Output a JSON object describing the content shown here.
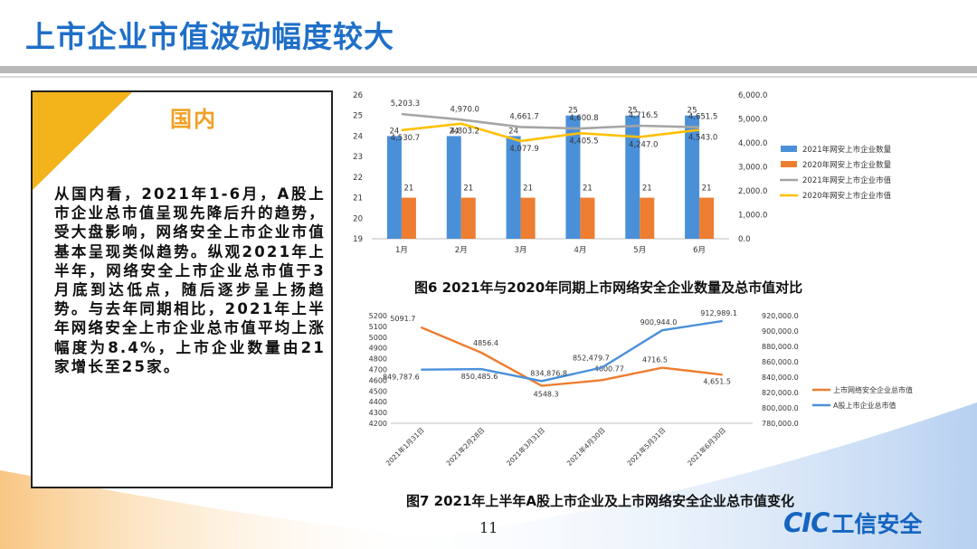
{
  "slide": {
    "title": "上市企业市值波动幅度较大",
    "page_number": "11"
  },
  "panel": {
    "heading": "国内",
    "body": "从国内看，2021年1-6月，A股上市企业总市值呈现先降后升的趋势，受大盘影响，网络安全上市企业市值基本呈现类似趋势。纵观2021年上半年，网络安全上市企业总市值于3月底到达低点，随后逐步呈上扬趋势。与去年同期相比，2021年上半年网络安全上市企业总市值平均上涨幅度为8.4%，上市企业数量由21家增长至25家。"
  },
  "captions": {
    "fig6": "图6  2021年与2020年同期上市网络安全企业数量及总市值对比",
    "fig7": "图7  2021年上半年A股上市企业及上市网络安全企业总市值变化"
  },
  "logo": {
    "mark": "CIC",
    "text": "工信安全"
  },
  "colors": {
    "title": "#1f6fc8",
    "orange": "#ed7d31",
    "blue": "#4a90d9",
    "gray": "#a5a5a5",
    "yellow": "#ffc000",
    "accent": "#f2b31b"
  },
  "chart_data": [
    {
      "type": "bar+line",
      "title": "图6  2021年与2020年同期上市网络安全企业数量及总市值对比",
      "categories": [
        "1月",
        "2月",
        "3月",
        "4月",
        "5月",
        "6月"
      ],
      "left_axis": {
        "ylim": [
          19,
          26
        ],
        "ticks": [
          "19",
          "20",
          "21",
          "22",
          "23",
          "24",
          "25",
          "26"
        ]
      },
      "right_axis": {
        "ylim": [
          0,
          6000
        ],
        "ticks": [
          "0.0",
          "1,000.0",
          "2,000.0",
          "3,000.0",
          "4,000.0",
          "5,000.0",
          "6,000.0"
        ]
      },
      "bar_series": [
        {
          "name": "2021年网安上市企业数量",
          "values": [
            24,
            24,
            24,
            25,
            25,
            25
          ],
          "labels": [
            "24",
            "24",
            "24",
            "25",
            "25",
            "25"
          ]
        },
        {
          "name": "2020年网安上市企业数量",
          "values": [
            21,
            21,
            21,
            21,
            21,
            21
          ],
          "labels": [
            "21",
            "21",
            "21",
            "21",
            "21",
            "21"
          ]
        }
      ],
      "line_series": [
        {
          "name": "2021年网安上市企业市值",
          "values": [
            5203.3,
            4970.0,
            4661.7,
            4600.8,
            4716.5,
            4651.5
          ],
          "labels": [
            "5,203.3",
            "4,970.0",
            "4,661.7",
            "4,600.8",
            "4,716.5",
            "4,651.5"
          ]
        },
        {
          "name": "2020年网安上市企业市值",
          "values": [
            4530.7,
            4803.2,
            4077.9,
            4405.5,
            4247.0,
            4543.0
          ],
          "labels": [
            "4,530.7",
            "4,803.2",
            "4,077.9",
            "4,405.5",
            "4,247.0",
            "4,543.0"
          ]
        }
      ],
      "legend": [
        "2021年网安上市企业数量",
        "2020年网安上市企业数量",
        "2021年网安上市企业市值",
        "2020年网安上市企业市值"
      ]
    },
    {
      "type": "line",
      "title": "图7  2021年上半年A股上市企业及上市网络安全企业总市值变化",
      "categories": [
        "2021年1月31日",
        "2021年2月28日",
        "2021年3月31日",
        "2021年4月30日",
        "2021年5月31日",
        "2021年6月30日"
      ],
      "left_axis": {
        "ylim": [
          4200,
          5200
        ],
        "ticks": [
          "4200",
          "4300",
          "4400",
          "4500",
          "4600",
          "4700",
          "4800",
          "4900",
          "5000",
          "5100",
          "5200"
        ]
      },
      "right_axis": {
        "ylim": [
          780000,
          920000
        ],
        "ticks": [
          "780,000.0",
          "800,000.0",
          "820,000.0",
          "840,000.0",
          "860,000.0",
          "880,000.0",
          "900,000.0",
          "920,000.0"
        ]
      },
      "series": [
        {
          "name": "上市网络安全企业总市值",
          "axis": "left",
          "values": [
            5091.7,
            4856.4,
            4548.3,
            4600.77,
            4716.5,
            4651.5
          ],
          "labels": [
            "5091.7",
            "4856.4",
            "4548.3",
            "4600.77",
            "4716.5",
            "4,651.5"
          ]
        },
        {
          "name": "A股上市企业总市值",
          "axis": "right",
          "values": [
            849787.6,
            850485.6,
            834876.8,
            852479.7,
            900944.0,
            912989.1
          ],
          "labels": [
            "849,787.6",
            "850,485.6",
            "834,876.8",
            "852,479.7",
            "900,944.0",
            "912,989.1"
          ]
        }
      ],
      "legend": [
        "上市网络安全企业总市值",
        "A股上市企业总市值"
      ]
    }
  ]
}
